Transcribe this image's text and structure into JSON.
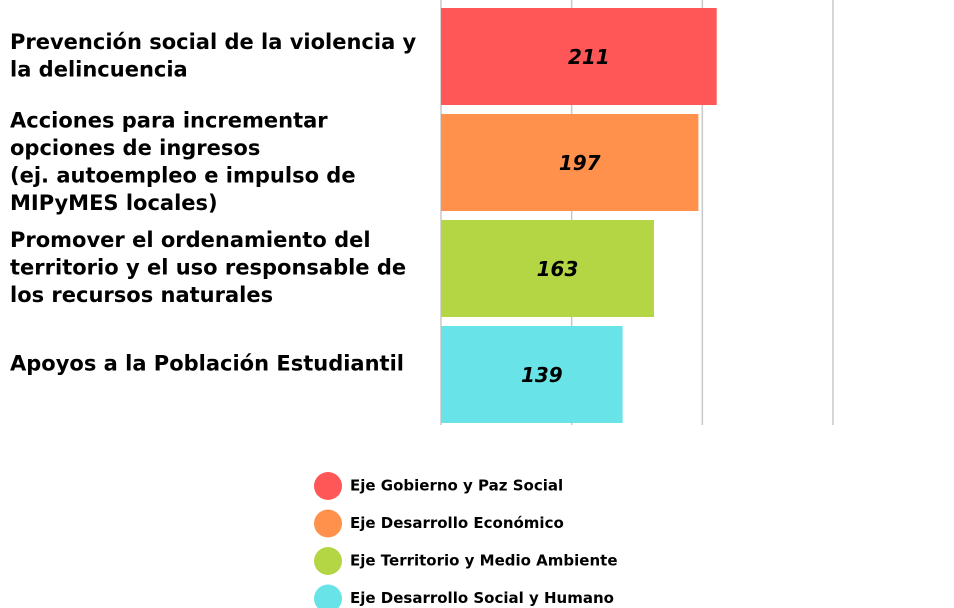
{
  "chart_data": {
    "type": "bar",
    "orientation": "horizontal",
    "categories": [
      [
        "Prevención social de la violencia y",
        "la delincuencia"
      ],
      [
        "Acciones para incrementar",
        "opciones de ingresos",
        "(ej. autoempleo e impulso de",
        "MIPyMES locales)"
      ],
      [
        "Promover el ordenamiento del",
        "territorio y el uso responsable de",
        "los recursos naturales"
      ],
      [
        "Apoyos a la Población Estudiantil"
      ]
    ],
    "series": [
      {
        "name": "Eje Gobierno y Paz Social",
        "color": "#ff5757",
        "values": [
          211,
          null,
          null,
          null
        ]
      },
      {
        "name": "Eje Desarrollo Económico",
        "color": "#ff914d",
        "values": [
          null,
          197,
          null,
          null
        ]
      },
      {
        "name": "Eje Territorio y Medio Ambiente",
        "color": "#b4d645",
        "values": [
          null,
          null,
          163,
          null
        ]
      },
      {
        "name": "Eje Desarrollo Social y Humano",
        "color": "#68e3e8",
        "values": [
          null,
          null,
          null,
          139
        ]
      }
    ],
    "xlim": [
      0,
      300
    ],
    "xticks": [
      0,
      100,
      200,
      300
    ],
    "grid": true
  }
}
